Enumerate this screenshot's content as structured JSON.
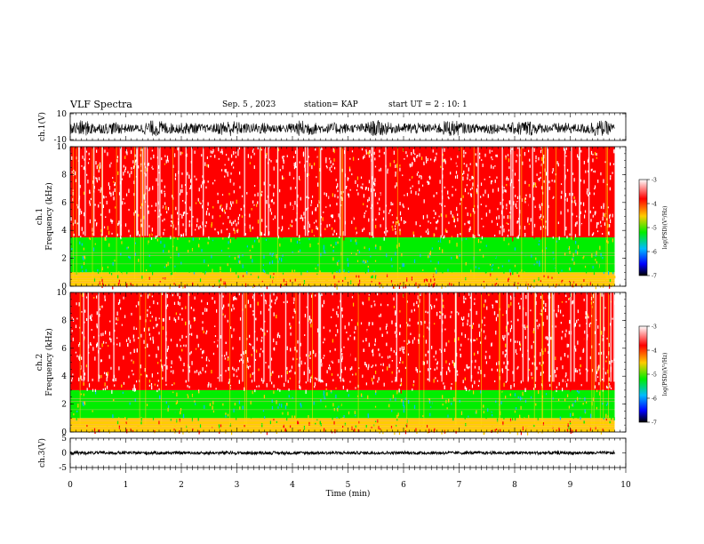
{
  "header": {
    "title": "VLF Spectra",
    "date": "Sep. 5 , 2023",
    "station": "station= KAP",
    "start": "start UT = 2 : 10: 1"
  },
  "colorbar": {
    "label": "log(PSD)(V²/Hz)",
    "ticks": [
      "-3",
      "-4",
      "-5",
      "-6",
      "-7"
    ],
    "stops": [
      "#ffffff",
      "#ff0000",
      "#ffcc00",
      "#00ee00",
      "#00bbff",
      "#0000ff",
      "#000000"
    ]
  },
  "chart_data": [
    {
      "type": "line",
      "name": "ch1-waveform",
      "ylabel": "ch.1(V)",
      "ylim": [
        -10,
        10
      ],
      "ytick_labels": [
        "10",
        "-10"
      ],
      "xlim": [
        0,
        10
      ],
      "description_values": {
        "baseline": 0,
        "typical_amplitude": 6,
        "data_end_min": 9.8
      }
    },
    {
      "type": "heatmap",
      "name": "ch1-spectrogram",
      "ylabel": "ch.1\nFrequency (kHz)",
      "ylim": [
        0,
        10
      ],
      "ytick_labels": [
        "0",
        "2",
        "4",
        "6",
        "8",
        "10"
      ],
      "xlim": [
        0,
        10
      ],
      "bands": [
        {
          "from_khz": 0,
          "to_khz": 0.4,
          "log_psd": -4.0
        },
        {
          "from_khz": 0.4,
          "to_khz": 1.0,
          "log_psd": -4.3
        },
        {
          "from_khz": 1.0,
          "to_khz": 3.5,
          "log_psd": -5.0
        },
        {
          "from_khz": 3.5,
          "to_khz": 10,
          "log_psd": -3.6
        }
      ],
      "data_end_min": 9.8
    },
    {
      "type": "heatmap",
      "name": "ch2-spectrogram",
      "ylabel": "ch.2\nFrequency (kHz)",
      "ylim": [
        0,
        10
      ],
      "ytick_labels": [
        "0",
        "2",
        "4",
        "6",
        "8",
        "10"
      ],
      "xlim": [
        0,
        10
      ],
      "bands": [
        {
          "from_khz": 0,
          "to_khz": 0.4,
          "log_psd": -4.0
        },
        {
          "from_khz": 0.4,
          "to_khz": 1.0,
          "log_psd": -4.3
        },
        {
          "from_khz": 1.0,
          "to_khz": 3.0,
          "log_psd": -5.0
        },
        {
          "from_khz": 3.0,
          "to_khz": 10,
          "log_psd": -3.6
        }
      ],
      "data_end_min": 9.8
    },
    {
      "type": "line",
      "name": "ch3-waveform",
      "ylabel": "ch.3(V)",
      "ylim": [
        -5,
        5
      ],
      "ytick_labels": [
        "5",
        "0",
        "-5"
      ],
      "xlim": [
        0,
        10
      ],
      "xlabel": "Time (min)",
      "xtick_labels": [
        "0",
        "1",
        "2",
        "3",
        "4",
        "5",
        "6",
        "7",
        "8",
        "9",
        "10"
      ],
      "description_values": {
        "baseline": 0,
        "typical_amplitude": 0.5,
        "data_end_min": 9.8
      }
    }
  ]
}
